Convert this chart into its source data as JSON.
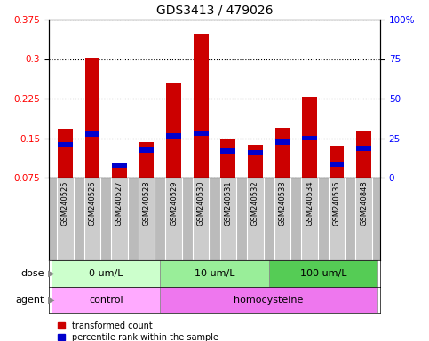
{
  "title": "GDS3413 / 479026",
  "samples": [
    "GSM240525",
    "GSM240526",
    "GSM240527",
    "GSM240528",
    "GSM240529",
    "GSM240530",
    "GSM240531",
    "GSM240532",
    "GSM240533",
    "GSM240534",
    "GSM240535",
    "GSM240848"
  ],
  "red_values": [
    0.168,
    0.302,
    0.095,
    0.143,
    0.253,
    0.348,
    0.15,
    0.138,
    0.17,
    0.228,
    0.135,
    0.162
  ],
  "blue_values": [
    0.138,
    0.158,
    0.098,
    0.128,
    0.155,
    0.16,
    0.125,
    0.122,
    0.143,
    0.15,
    0.1,
    0.13
  ],
  "blue_bar_height": 0.01,
  "ylim_left": [
    0.075,
    0.375
  ],
  "ylim_right": [
    0,
    100
  ],
  "yticks_left": [
    0.075,
    0.15,
    0.225,
    0.3,
    0.375
  ],
  "yticks_right": [
    0,
    25,
    50,
    75,
    100
  ],
  "ytick_labels_right": [
    "0",
    "25",
    "50",
    "75",
    "100%"
  ],
  "dose_groups": [
    {
      "label": "0 um/L",
      "start": 0,
      "end": 3,
      "color": "#ccffcc"
    },
    {
      "label": "10 um/L",
      "start": 4,
      "end": 7,
      "color": "#99ee99"
    },
    {
      "label": "100 um/L",
      "start": 8,
      "end": 11,
      "color": "#55cc55"
    }
  ],
  "agent_groups": [
    {
      "label": "control",
      "start": 0,
      "end": 3,
      "color": "#ffaaff"
    },
    {
      "label": "homocysteine",
      "start": 4,
      "end": 11,
      "color": "#ee77ee"
    }
  ],
  "bar_width": 0.55,
  "red_color": "#cc0000",
  "blue_color": "#0000cc",
  "plot_bg_color": "#ffffff",
  "label_bg_color": "#cccccc",
  "legend_items": [
    "transformed count",
    "percentile rank within the sample"
  ],
  "title_fontsize": 10,
  "tick_fontsize": 7.5,
  "label_fontsize": 6.0,
  "row_fontsize": 8.0,
  "legend_fontsize": 7.0
}
